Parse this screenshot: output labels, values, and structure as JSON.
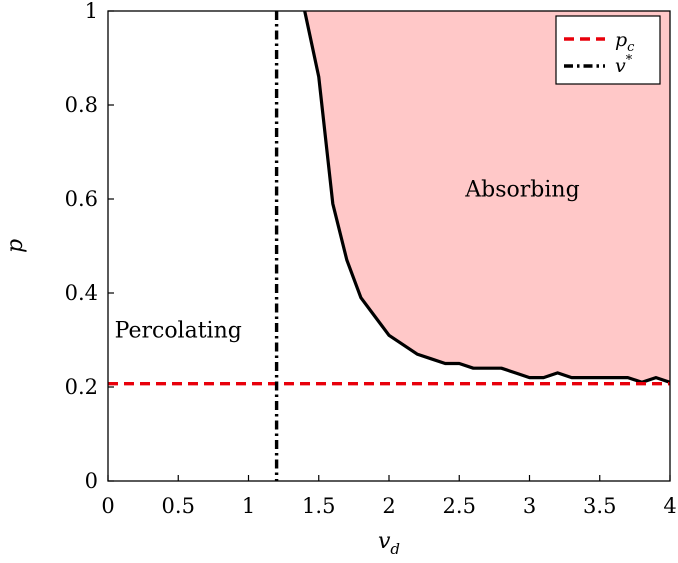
{
  "chart_data": {
    "type": "line",
    "xlabel": {
      "base": "v",
      "sub": "d"
    },
    "ylabel": "p",
    "xlim": [
      0,
      4
    ],
    "ylim": [
      0,
      1
    ],
    "xticks": [
      0,
      0.5,
      1,
      1.5,
      2,
      2.5,
      3,
      3.5,
      4
    ],
    "xtick_labels": [
      "0",
      "0.5",
      "1",
      "1.5",
      "2",
      "2.5",
      "3",
      "3.5",
      "4"
    ],
    "yticks": [
      0,
      0.2,
      0.4,
      0.6,
      0.8,
      1
    ],
    "ytick_labels": [
      "0",
      "0.2",
      "0.4",
      "0.6",
      "0.8",
      "1"
    ],
    "grid": false,
    "legend_position": "top-right",
    "series": [
      {
        "kind": "boundary",
        "color": "#000000",
        "fill_color": "#ffc8c8",
        "x": [
          1.4,
          1.5,
          1.6,
          1.7,
          1.8,
          1.9,
          2.0,
          2.1,
          2.2,
          2.3,
          2.4,
          2.5,
          2.6,
          2.7,
          2.8,
          2.9,
          3.0,
          3.1,
          3.2,
          3.3,
          3.4,
          3.5,
          3.6,
          3.7,
          3.8,
          3.9,
          4.0
        ],
        "y": [
          1.0,
          0.86,
          0.59,
          0.47,
          0.39,
          0.35,
          0.31,
          0.29,
          0.27,
          0.26,
          0.25,
          0.25,
          0.24,
          0.24,
          0.24,
          0.23,
          0.22,
          0.22,
          0.23,
          0.22,
          0.22,
          0.22,
          0.22,
          0.22,
          0.21,
          0.22,
          0.21
        ]
      },
      {
        "kind": "hline",
        "legend": {
          "base": "p",
          "sub": "c"
        },
        "color": "#e8000b",
        "style": "dashed",
        "y": 0.207
      },
      {
        "kind": "vline",
        "legend": {
          "base": "v",
          "sup": "*"
        },
        "color": "#000000",
        "style": "dashdot",
        "x": 1.2
      }
    ],
    "annotations": [
      {
        "text": "Absorbing",
        "x": 2.95,
        "y": 0.605
      },
      {
        "text": "Percolating",
        "x": 0.5,
        "y": 0.305
      }
    ]
  }
}
